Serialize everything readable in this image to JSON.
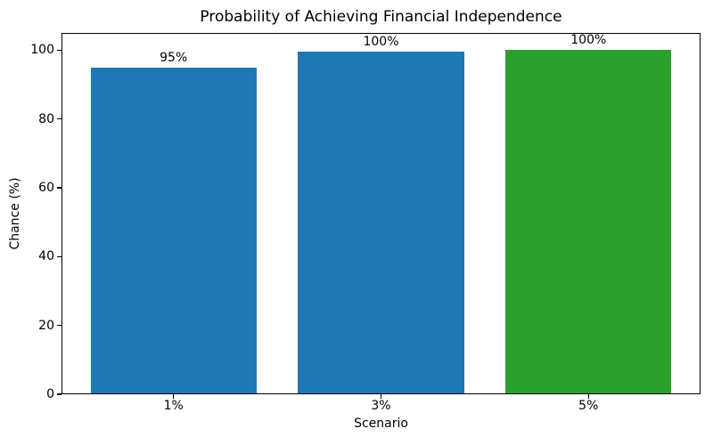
{
  "chart_data": {
    "type": "bar",
    "title": "Probability of Achieving Financial Independence",
    "xlabel": "Scenario",
    "ylabel": "Chance (%)",
    "categories": [
      "1%",
      "3%",
      "5%"
    ],
    "values": [
      95,
      99.5,
      100
    ],
    "bar_labels": [
      "95%",
      "100%",
      "100%"
    ],
    "bar_colors": [
      "#1f77b4",
      "#1f77b4",
      "#2ca02c"
    ],
    "ylim": [
      0,
      105
    ],
    "yticks": [
      0,
      20,
      40,
      60,
      80,
      100
    ],
    "grid": false,
    "legend": "none",
    "bar_width_fraction": 0.8
  }
}
